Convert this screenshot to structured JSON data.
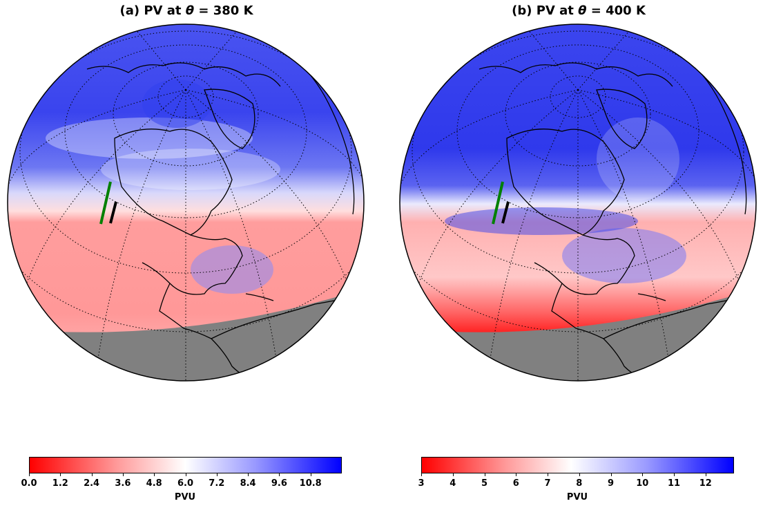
{
  "panels": [
    {
      "title_prefix": "(a) PV at ",
      "title_symbol": "θ",
      "title_suffix": " = 380 K",
      "colorbar": {
        "ticks": [
          "0.0",
          "1.2",
          "2.4",
          "3.6",
          "4.8",
          "6.0",
          "7.2",
          "8.4",
          "9.6",
          "10.8"
        ],
        "label": "PVU",
        "range": [
          0.0,
          12.0
        ],
        "colormap": "bwr_r"
      }
    },
    {
      "title_prefix": "(b) PV at ",
      "title_symbol": "θ",
      "title_suffix": " = 400 K",
      "colorbar": {
        "ticks": [
          "3",
          "4",
          "5",
          "6",
          "7",
          "8",
          "9",
          "10",
          "11",
          "12"
        ],
        "label": "PVU",
        "range": [
          3,
          12.9
        ],
        "colormap": "bwr_r"
      }
    }
  ],
  "colors": {
    "low_pv": "#ff0000",
    "mid_pv": "#ffffff",
    "high_pv": "#0000ff",
    "masked": "#808080",
    "cross_section_1": "#008000",
    "cross_section_2": "#000000"
  }
}
